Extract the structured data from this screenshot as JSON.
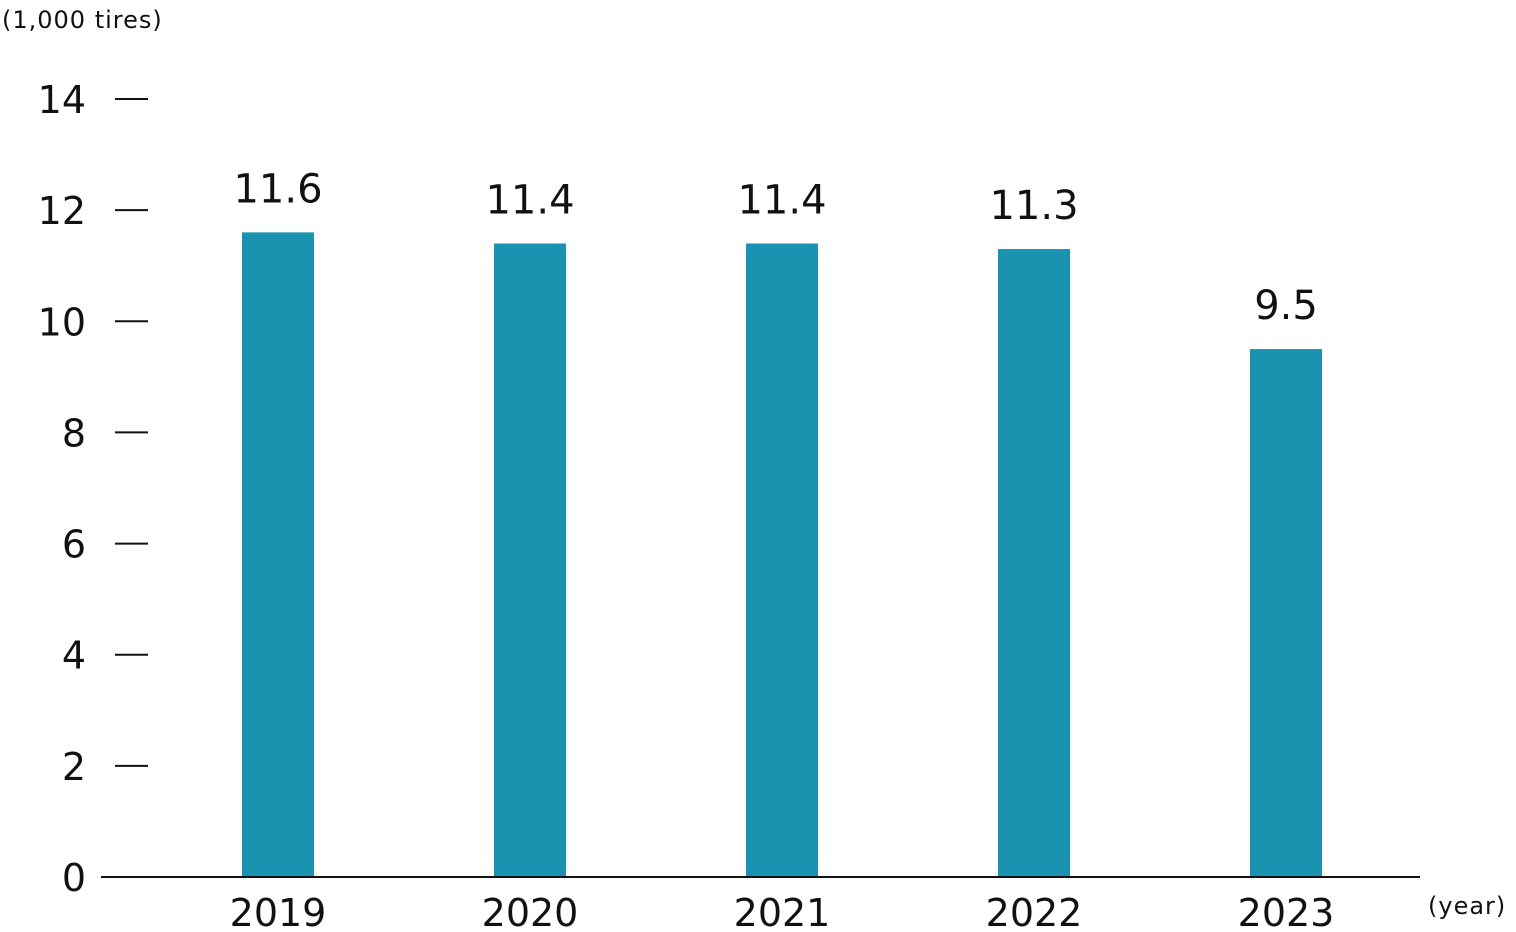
{
  "chart_data": {
    "type": "bar",
    "categories": [
      "2019",
      "2020",
      "2021",
      "2022",
      "2023"
    ],
    "values": [
      11.6,
      11.4,
      11.4,
      11.3,
      9.5
    ],
    "value_labels": [
      "11.6",
      "11.4",
      "11.4",
      "11.3",
      "9.5"
    ],
    "y_ticks": [
      "0",
      "2",
      "4",
      "6",
      "8",
      "10",
      "12",
      "14"
    ],
    "ylim": [
      0,
      14
    ],
    "y_unit_label": "(1,000 tires)",
    "x_unit_label": "(year)",
    "bar_color": "#1a93b1",
    "grid": false,
    "legend": "none"
  }
}
